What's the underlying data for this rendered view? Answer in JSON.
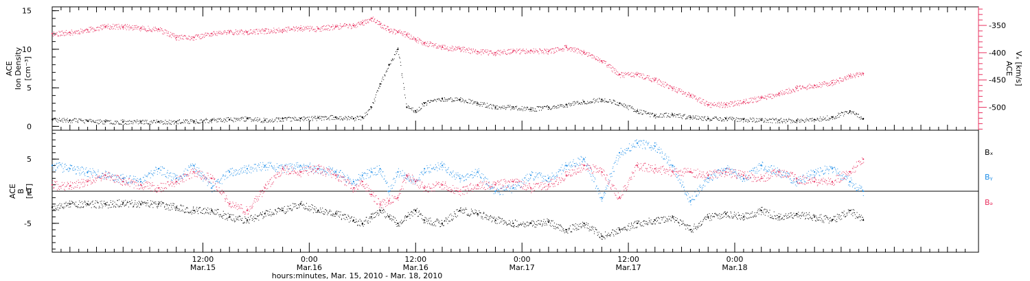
{
  "chart_data": [
    {
      "type": "scatter",
      "panel": "top",
      "ylabel_lines": [
        "ACE",
        "Ion Density",
        "[cm⁻³]"
      ],
      "ylim": [
        -0.5,
        15.5
      ],
      "yticks": [
        0,
        5,
        10,
        15
      ],
      "y2label_lines": [
        "ACE",
        "Vₓ [km/s]"
      ],
      "y2lim": [
        -542,
        -316
      ],
      "y2ticks": [
        -350,
        -400,
        -450,
        -500
      ],
      "colors": {
        "density": "#000000",
        "vx": "#e8305f"
      },
      "x_hours_from_mar15_00": [
        -5,
        -3,
        -1,
        1,
        3,
        5,
        7,
        9,
        11,
        13,
        15,
        17,
        19,
        21,
        23,
        25,
        27,
        29,
        30,
        31,
        32,
        33,
        34,
        35,
        36,
        37,
        39,
        41,
        43,
        45,
        47,
        49,
        51,
        53,
        55,
        57,
        59,
        61,
        63,
        65,
        67,
        69,
        71,
        73,
        75,
        77,
        79,
        81,
        83,
        85,
        86.5
      ],
      "series": [
        {
          "values": [
            0.9,
            0.8,
            0.7,
            0.6,
            0.6,
            0.6,
            0.6,
            0.6,
            0.7,
            0.8,
            0.9,
            1.0,
            0.8,
            1.0,
            1.0,
            1.1,
            1.2,
            1.0,
            1.2,
            2.5,
            5.5,
            8.0,
            10.0,
            2.5,
            2.0,
            3.0,
            3.6,
            3.5,
            3.0,
            2.5,
            2.5,
            2.2,
            2.5,
            2.8,
            3.2,
            3.5,
            3.0,
            2.0,
            1.4,
            1.5,
            1.2,
            1.0,
            1.0,
            0.9,
            0.8,
            0.8,
            0.8,
            0.9,
            1.2,
            2.0,
            1.0
          ]
        },
        {
          "values": [
            -365,
            -363,
            -358,
            -352,
            -352,
            -355,
            -357,
            -372,
            -372,
            -365,
            -362,
            -362,
            -360,
            -358,
            -355,
            -356,
            -352,
            -350,
            -345,
            -337,
            -348,
            -358,
            -362,
            -367,
            -375,
            -382,
            -390,
            -393,
            -398,
            -400,
            -397,
            -396,
            -398,
            -390,
            -400,
            -415,
            -440,
            -440,
            -450,
            -465,
            -478,
            -495,
            -495,
            -490,
            -483,
            -475,
            -465,
            -460,
            -455,
            -443,
            -438
          ]
        }
      ]
    },
    {
      "type": "scatter",
      "panel": "bottom",
      "ylabel_lines": [
        "ACE",
        "B",
        "[nT]"
      ],
      "ylim": [
        -9.5,
        9.5
      ],
      "yticks": [
        -5,
        0,
        5
      ],
      "colors": {
        "Bx": "#000000",
        "By": "#1e8ee8",
        "Bz": "#e8305f"
      },
      "legend_entries": [
        "Bₓ",
        "Bᵧ",
        "Bₔ"
      ],
      "x_hours_from_mar15_00": [
        -5,
        -3,
        -1,
        1,
        3,
        5,
        7,
        9,
        11,
        13,
        15,
        17,
        19,
        21,
        23,
        25,
        27,
        29,
        30,
        31,
        32,
        33,
        34,
        35,
        36,
        37,
        39,
        41,
        43,
        45,
        47,
        49,
        51,
        53,
        55,
        57,
        59,
        61,
        63,
        65,
        67,
        69,
        71,
        73,
        75,
        77,
        79,
        81,
        83,
        85,
        86.5
      ],
      "series": [
        {
          "values": [
            -2.5,
            -2.0,
            -2.0,
            -2.0,
            -1.8,
            -2.0,
            -2.0,
            -2.5,
            -3.0,
            -3.0,
            -4.0,
            -4.5,
            -3.5,
            -3.0,
            -2.0,
            -3.0,
            -3.5,
            -4.5,
            -5.0,
            -4.0,
            -3.0,
            -4.0,
            -5.0,
            -4.0,
            -3.0,
            -4.5,
            -5.0,
            -3.0,
            -3.5,
            -4.5,
            -5.0,
            -5.0,
            -4.8,
            -6.0,
            -5.0,
            -7.0,
            -6.0,
            -5.0,
            -4.5,
            -4.0,
            -6.0,
            -4.0,
            -3.5,
            -4.0,
            -3.0,
            -4.0,
            -3.5,
            -4.0,
            -4.5,
            -3.0,
            -4.5
          ]
        },
        {
          "values": [
            4.0,
            3.5,
            3.0,
            2.5,
            2.0,
            1.5,
            3.5,
            2.0,
            4.0,
            0.5,
            3.0,
            3.5,
            4.0,
            3.5,
            4.0,
            3.5,
            3.0,
            1.5,
            2.5,
            3.0,
            3.5,
            0.0,
            3.0,
            2.5,
            1.5,
            3.5,
            4.0,
            2.0,
            3.0,
            0.0,
            0.5,
            2.5,
            2.0,
            4.0,
            5.0,
            -1.0,
            6.0,
            7.5,
            7.0,
            4.0,
            -1.5,
            2.0,
            3.5,
            2.0,
            4.0,
            3.0,
            1.5,
            3.0,
            3.5,
            1.5,
            0.0
          ]
        },
        {
          "values": [
            1.0,
            0.8,
            1.5,
            2.5,
            1.5,
            1.0,
            0.5,
            1.5,
            3.0,
            2.0,
            -2.0,
            -3.0,
            0.5,
            3.5,
            3.0,
            3.5,
            2.5,
            0.5,
            1.5,
            -0.5,
            -2.0,
            -1.5,
            -1.0,
            2.5,
            1.5,
            0.5,
            1.0,
            0.0,
            1.0,
            1.0,
            1.5,
            0.5,
            1.0,
            2.5,
            4.0,
            3.0,
            -1.0,
            4.0,
            3.5,
            3.0,
            3.0,
            2.5,
            3.0,
            2.5,
            2.0,
            3.0,
            2.0,
            1.5,
            1.5,
            3.0,
            5.0
          ]
        }
      ]
    }
  ],
  "x_axis": {
    "xlim": [
      -5,
      99.5
    ],
    "major_ticks": [
      {
        "x": 12,
        "time": "12:00",
        "date": "Mar.15"
      },
      {
        "x": 24,
        "time": "0:00",
        "date": "Mar.16"
      },
      {
        "x": 36,
        "time": "12:00",
        "date": "Mar.16"
      },
      {
        "x": 48,
        "time": "0:00",
        "date": "Mar.17"
      },
      {
        "x": 60,
        "time": "12:00",
        "date": "Mar.17"
      },
      {
        "x": 72,
        "time": "0:00",
        "date": "Mar.18"
      }
    ],
    "xlabel": "hours:minutes, Mar. 15, 2010 - Mar. 18, 2010"
  }
}
